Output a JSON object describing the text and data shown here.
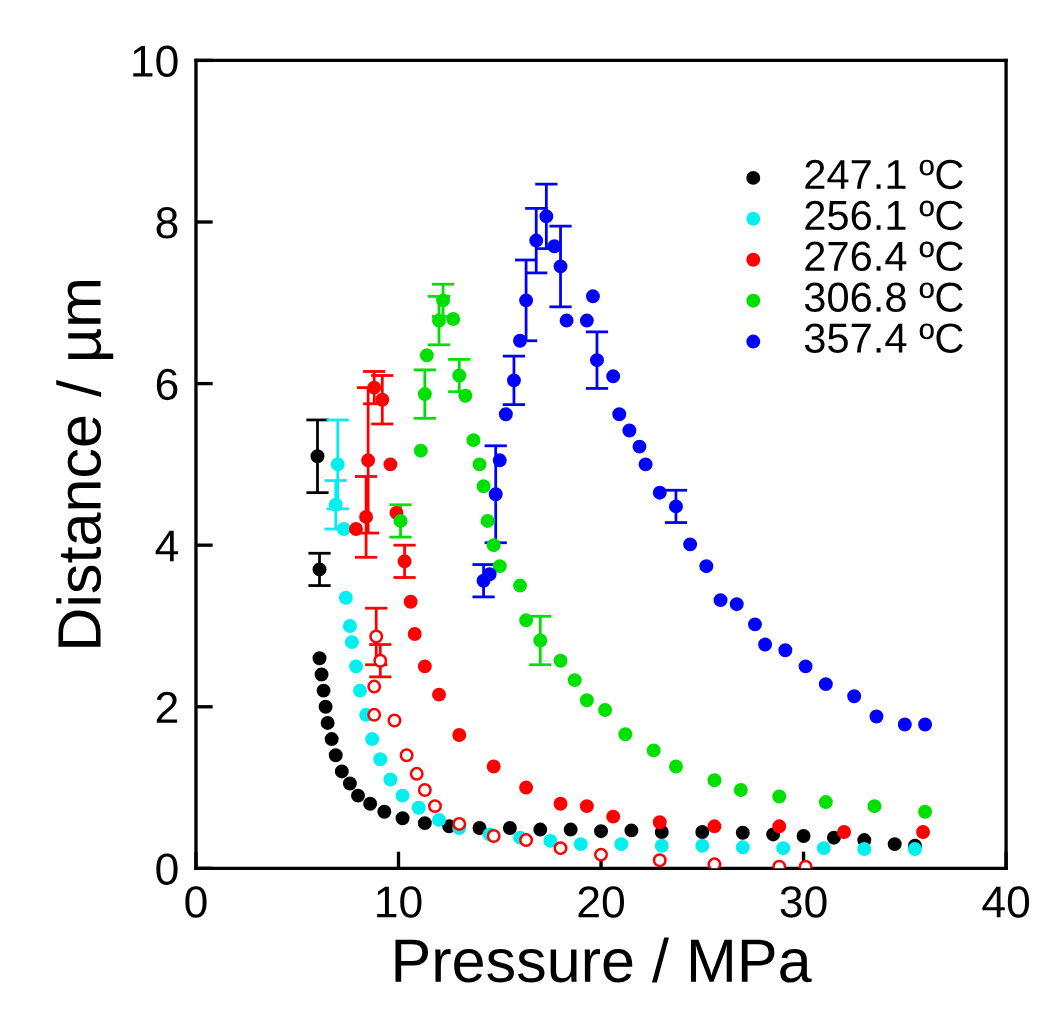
{
  "chart_data": {
    "type": "scatter",
    "xlabel": "Pressure / MPa",
    "ylabel": "Distance / µm",
    "xlim": [
      0,
      40
    ],
    "ylim": [
      0,
      10
    ],
    "xticks": [
      0,
      10,
      20,
      30,
      40
    ],
    "yticks": [
      0,
      2,
      4,
      6,
      8,
      10
    ],
    "grid": false,
    "legend": "top right",
    "marker": "circle",
    "series": [
      {
        "name": "247.1 ºC",
        "color": "#000000",
        "x": [
          6.0,
          6.1,
          6.1,
          6.2,
          6.3,
          6.4,
          6.5,
          6.7,
          6.9,
          7.2,
          7.6,
          8.0,
          8.6,
          9.3,
          10.2,
          11.3,
          12.5,
          14,
          15.5,
          17,
          18.5,
          20,
          21.5,
          23,
          25,
          27,
          28.5,
          30,
          31.5,
          33,
          34.5,
          35.5
        ],
        "values": [
          5.1,
          3.7,
          2.6,
          2.4,
          2.2,
          2.0,
          1.8,
          1.6,
          1.4,
          1.2,
          1.05,
          0.9,
          0.8,
          0.7,
          0.62,
          0.56,
          0.52,
          0.5,
          0.5,
          0.48,
          0.48,
          0.46,
          0.47,
          0.45,
          0.45,
          0.44,
          0.42,
          0.4,
          0.38,
          0.35,
          0.3,
          0.28
        ],
        "errors": [
          0.45,
          0.2,
          null,
          null,
          null,
          null,
          null,
          null,
          null,
          null,
          null,
          null,
          null,
          null,
          null,
          null,
          null,
          null,
          null,
          null,
          null,
          null,
          null,
          null,
          null,
          null,
          null,
          null,
          null,
          null,
          null,
          null
        ]
      },
      {
        "name": "256.1 ºC",
        "color": "#00f0f0",
        "x": [
          7.0,
          6.9,
          7.3,
          7.4,
          7.6,
          7.7,
          7.9,
          8.1,
          8.4,
          8.7,
          9.1,
          9.6,
          10.2,
          11,
          12,
          13,
          14.5,
          16,
          17.5,
          19,
          21,
          23,
          25,
          27,
          29,
          31,
          33,
          35.5
        ],
        "values": [
          5.0,
          4.5,
          4.2,
          3.35,
          3.0,
          2.8,
          2.5,
          2.2,
          1.9,
          1.6,
          1.35,
          1.1,
          0.9,
          0.75,
          0.6,
          0.5,
          0.42,
          0.38,
          0.34,
          0.3,
          0.3,
          0.28,
          0.28,
          0.26,
          0.25,
          0.25,
          0.24,
          0.24
        ],
        "errors": [
          0.55,
          0.3,
          null,
          null,
          null,
          null,
          null,
          null,
          null,
          null,
          null,
          null,
          null,
          null,
          null,
          null,
          null,
          null,
          null,
          null,
          null,
          null,
          null,
          null,
          null,
          null,
          null,
          null
        ]
      },
      {
        "name": "276.4 ºC",
        "color": "#ff0000",
        "x": [
          7.9,
          8.4,
          8.5,
          8.8,
          9.2,
          9.6,
          9.9,
          10.3,
          10.6,
          10.8,
          11.3,
          12,
          13,
          14.7,
          16.3,
          18,
          19.3,
          20.6,
          22.9,
          25.6,
          28.8,
          32,
          35.9
        ],
        "values": [
          4.2,
          4.35,
          5.05,
          5.95,
          5.8,
          5.0,
          4.4,
          3.8,
          3.3,
          2.9,
          2.5,
          2.15,
          1.65,
          1.26,
          1.0,
          0.8,
          0.77,
          0.64,
          0.57,
          0.52,
          0.52,
          0.45,
          0.45
        ],
        "errors": [
          null,
          0.5,
          0.9,
          0.2,
          0.3,
          null,
          null,
          0.2,
          null,
          null,
          null,
          null,
          null,
          null,
          null,
          null,
          null,
          null,
          null,
          null,
          null,
          null,
          null
        ]
      },
      {
        "color": "#ff0000",
        "marker": "open circle",
        "x": [
          8.9,
          9.1,
          8.8,
          8.8,
          9.8,
          10.4,
          10.9,
          11.3,
          11.8,
          13,
          14.7,
          16.3,
          18,
          20,
          22.9,
          25.6,
          28.8,
          30.1
        ],
        "values": [
          2.87,
          2.57,
          2.25,
          1.9,
          1.83,
          1.4,
          1.17,
          0.97,
          0.77,
          0.55,
          0.4,
          0.35,
          0.25,
          0.17,
          0.1,
          0.05,
          0.02,
          0.02
        ],
        "errors": [
          0.35,
          0.2,
          null,
          null,
          null,
          null,
          null,
          null,
          null,
          null,
          null,
          null,
          null,
          null,
          null,
          null,
          null,
          null
        ]
      },
      {
        "name": "306.8 ºC",
        "color": "#00e000",
        "x": [
          10.1,
          11.1,
          11.3,
          11.4,
          12,
          12.2,
          12.7,
          13,
          13.3,
          13.7,
          14,
          14.2,
          14.4,
          14.7,
          15,
          16,
          16.3,
          17,
          18,
          18.7,
          19.3,
          20.2,
          21.2,
          22.6,
          23.7,
          25.6,
          26.9,
          28.8,
          31.1,
          33.5,
          36
        ],
        "values": [
          4.3,
          5.17,
          5.87,
          6.35,
          6.78,
          7.03,
          6.8,
          6.1,
          5.85,
          5.3,
          5.0,
          4.73,
          4.3,
          4.0,
          3.74,
          3.5,
          3.07,
          2.82,
          2.57,
          2.33,
          2.08,
          1.96,
          1.66,
          1.46,
          1.26,
          1.09,
          0.97,
          0.89,
          0.82,
          0.77,
          0.7
        ],
        "errors": [
          0.2,
          null,
          0.3,
          null,
          0.3,
          0.2,
          null,
          0.2,
          null,
          null,
          null,
          null,
          null,
          null,
          null,
          null,
          null,
          0.3,
          null,
          null,
          null,
          null,
          null,
          null,
          null,
          null,
          null,
          null,
          null,
          null,
          null
        ]
      },
      {
        "name": "357.4 ºC",
        "color": "#0000ff",
        "x": [
          14.2,
          14.5,
          14.8,
          15,
          15.3,
          15.7,
          16,
          16.3,
          16.8,
          17.3,
          17.7,
          18,
          18.3,
          19.3,
          19.6,
          19.8,
          20.6,
          20.9,
          21.4,
          21.9,
          22.2,
          22.9,
          23.7,
          24.4,
          25.2,
          25.9,
          26.7,
          27.6,
          28.1,
          29.1,
          30.1,
          31.1,
          32.5,
          33.6,
          35,
          36
        ],
        "values": [
          3.56,
          3.64,
          4.63,
          5.05,
          5.62,
          6.04,
          6.53,
          7.03,
          7.77,
          8.07,
          7.7,
          7.45,
          6.78,
          6.78,
          7.08,
          6.29,
          6.09,
          5.62,
          5.42,
          5.22,
          5.0,
          4.65,
          4.48,
          4.01,
          3.74,
          3.32,
          3.27,
          3.02,
          2.77,
          2.7,
          2.5,
          2.28,
          2.13,
          1.88,
          1.78,
          1.78
        ],
        "errors": [
          0.2,
          null,
          0.6,
          null,
          null,
          0.3,
          null,
          0.5,
          0.4,
          0.4,
          null,
          0.5,
          null,
          null,
          null,
          0.35,
          null,
          null,
          null,
          null,
          null,
          null,
          0.2,
          null,
          null,
          null,
          null,
          null,
          null,
          null,
          null,
          null,
          null,
          null,
          null,
          null
        ]
      }
    ]
  }
}
